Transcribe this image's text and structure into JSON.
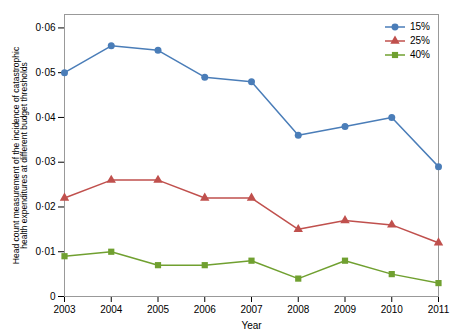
{
  "chart_data": {
    "type": "line",
    "x": [
      2003,
      2004,
      2005,
      2006,
      2007,
      2008,
      2009,
      2010,
      2011
    ],
    "series": [
      {
        "name": "15%",
        "color": "#4A7DB8",
        "marker": "circle",
        "values": [
          0.05,
          0.056,
          0.055,
          0.049,
          0.048,
          0.036,
          0.038,
          0.04,
          0.029
        ]
      },
      {
        "name": "25%",
        "color": "#C0504D",
        "marker": "triangle",
        "values": [
          0.022,
          0.026,
          0.026,
          0.022,
          0.022,
          0.015,
          0.017,
          0.016,
          0.012
        ]
      },
      {
        "name": "40%",
        "color": "#70A030",
        "marker": "square",
        "values": [
          0.009,
          0.01,
          0.007,
          0.007,
          0.008,
          0.004,
          0.008,
          0.005,
          0.003
        ]
      }
    ],
    "xlabel": "Year",
    "ylabel": "Head count measurement of the incidence of catastrophic\nhealth expenditures at different budget thresholds",
    "xlim": [
      2003,
      2011
    ],
    "xticks": [
      2003,
      2004,
      2005,
      2006,
      2007,
      2008,
      2009,
      2010,
      2011
    ],
    "ylim": [
      0,
      0.063
    ],
    "yticks": [
      0,
      {
        "value": 0.01,
        "label": "0·01"
      },
      {
        "value": 0.02,
        "label": "0·02"
      },
      {
        "value": 0.03,
        "label": "0·03"
      },
      {
        "value": 0.04,
        "label": "0·04"
      },
      {
        "value": 0.05,
        "label": "0·05"
      },
      {
        "value": 0.06,
        "label": "0·06"
      }
    ],
    "legend": "upper right",
    "grid": false
  }
}
